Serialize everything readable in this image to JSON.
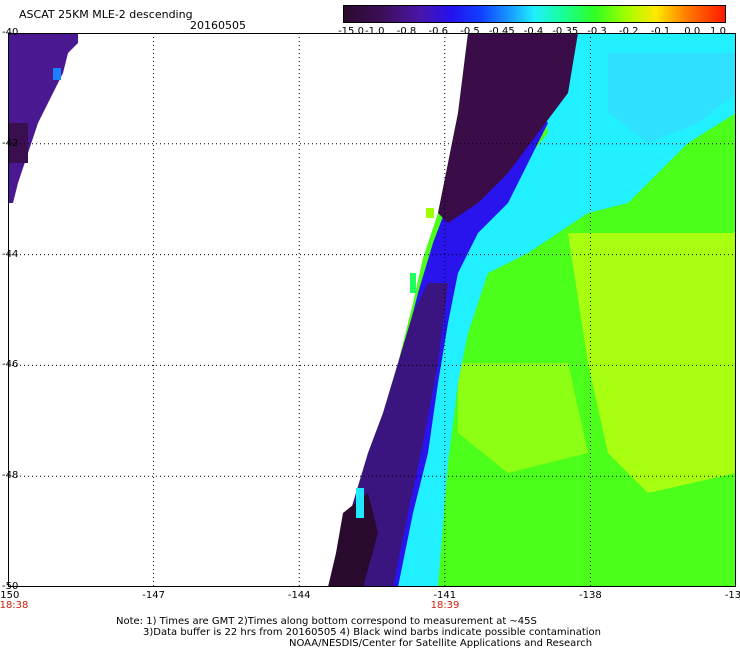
{
  "header": {
    "title": "ASCAT 25KM MLE-2 descending",
    "date": "20160505"
  },
  "colorbar": {
    "ticks": [
      "-15.0",
      "-1.0",
      "-0.8",
      "-0.6",
      "-0.5",
      "-0.45",
      "-0.4",
      "-0.35",
      "-0.3",
      "-0.2",
      "-0.1",
      "0.0",
      "1.0"
    ],
    "colors": [
      "#2a0a2e",
      "#3a0f55",
      "#5a1aa0",
      "#3a10e0",
      "#1040ff",
      "#1a90ff",
      "#20e8ff",
      "#18ff90",
      "#30ff20",
      "#a0ff00",
      "#ffe800",
      "#ff6a00",
      "#ff1a00"
    ]
  },
  "axes": {
    "lon_labels": [
      "-150",
      "-147",
      "-144",
      "-141",
      "-138",
      "-13"
    ],
    "lat_labels": [
      "-40",
      "-42",
      "-44",
      "-46",
      "-48",
      "-50"
    ],
    "time_labels": [
      "18:38",
      "18:39"
    ]
  },
  "notes": {
    "line1": "Note: 1) Times are GMT 2)Times along bottom correspond to measurement at ~45S",
    "line2": "3)Data buffer is 22 hrs from 20160505 4) Black wind barbs indicate possible contamination",
    "line3": "NOAA/NESDIS/Center for Satellite Applications and Research"
  },
  "palette": {
    "dark_purple": "#2a0a2e",
    "purple": "#4a1890",
    "blue": "#2010f0",
    "cyan": "#20f0ff",
    "green": "#40ff20",
    "yellow_green": "#a8ff10"
  }
}
